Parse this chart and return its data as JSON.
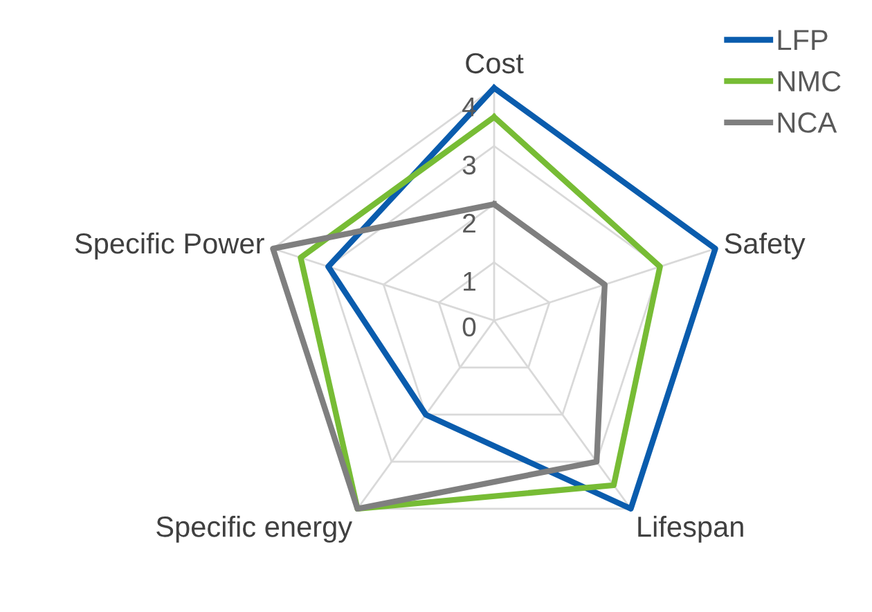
{
  "chart_data": {
    "type": "radar",
    "categories": [
      "Cost",
      "Safety",
      "Lifespan",
      "Specific energy",
      "Specific Power"
    ],
    "ylim": [
      0,
      4
    ],
    "yticks": [
      0,
      1,
      2,
      3,
      4
    ],
    "grid": true,
    "legend": "top right",
    "marker": "none",
    "series": [
      {
        "name": "LFP",
        "color": "#0a5cad",
        "values": [
          4,
          4,
          4,
          2,
          3
        ]
      },
      {
        "name": "NMC",
        "color": "#77bc35",
        "values": [
          3.5,
          3,
          3.5,
          4,
          3.5
        ]
      },
      {
        "name": "NCA",
        "color": "#7f7f7f",
        "values": [
          2,
          2,
          3,
          4,
          4
        ]
      }
    ]
  }
}
